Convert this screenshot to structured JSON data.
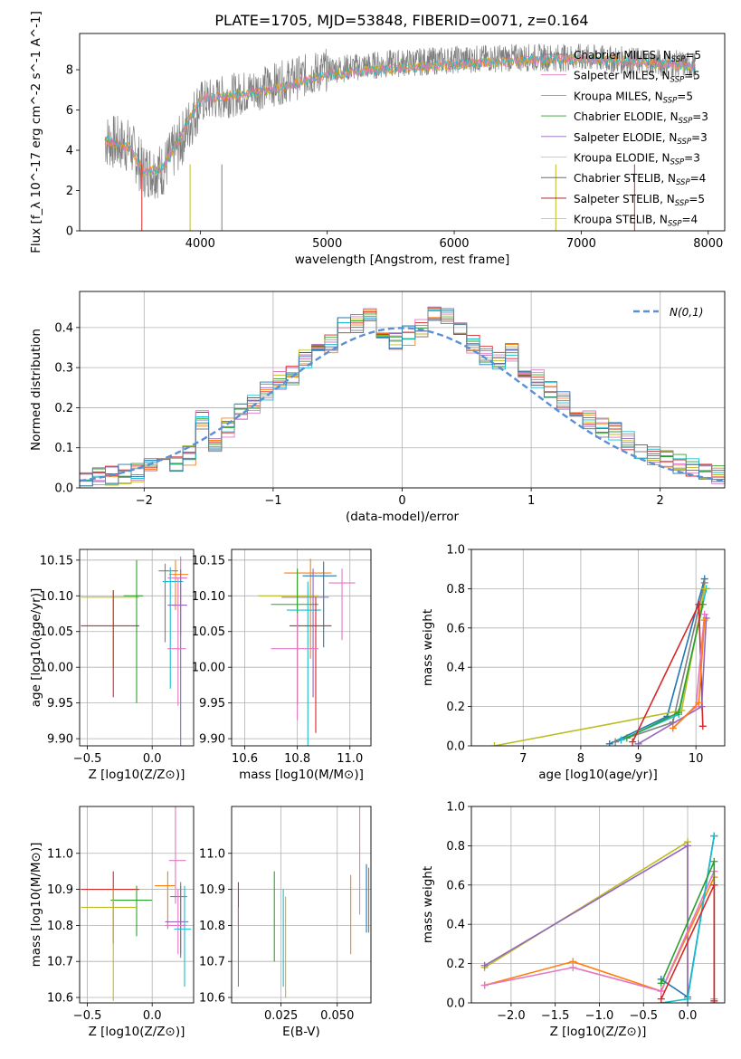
{
  "title": "PLATE=1705, MJD=53848, FIBERID=0071, z=0.164",
  "series_colors": [
    "#e377c2",
    "#7f7f7f",
    "#bcbd22",
    "#17becf",
    "#1f77b4",
    "#ff7f0e",
    "#2ca02c",
    "#d62728",
    "#9467bd"
  ],
  "chart_data": [
    {
      "id": "spectrum",
      "type": "line",
      "xlabel": "wavelength [Angstrom, rest frame]",
      "ylabel": "Flux [f_λ 10^-17 erg cm^-2 s^-1 A^-1]",
      "xlim": [
        3050,
        8130
      ],
      "ylim": [
        0,
        9.8
      ],
      "xticks": [
        4000,
        5000,
        6000,
        7000,
        8000
      ],
      "yticks": [
        0,
        2,
        4,
        6,
        8
      ],
      "legend_location": "upper right",
      "legend": [
        {
          "label": "Chabrier MILES, N",
          "sub": "SSP",
          "tail": "=5",
          "color": "#7f7f7f"
        },
        {
          "label": "Salpeter MILES, N",
          "sub": "SSP",
          "tail": "=5",
          "color": "#e377c2"
        },
        {
          "label": "Kroupa MILES, N",
          "sub": "SSP",
          "tail": "=5",
          "color": "#ff7f0e"
        },
        {
          "label": "Chabrier ELODIE, N",
          "sub": "SSP",
          "tail": "=3",
          "color": "#2ca02c"
        },
        {
          "label": "Salpeter ELODIE, N",
          "sub": "SSP",
          "tail": "=3",
          "color": "#9467bd"
        },
        {
          "label": "Kroupa ELODIE, N",
          "sub": "SSP",
          "tail": "=3",
          "color": "#dbdb4d"
        },
        {
          "label": "Chabrier STELIB, N",
          "sub": "SSP",
          "tail": "=4",
          "color": "#555555"
        },
        {
          "label": "Salpeter STELIB, N",
          "sub": "SSP",
          "tail": "=5",
          "color": "#8c1111"
        },
        {
          "label": "Kroupa STELIB, N",
          "sub": "SSP",
          "tail": "=4",
          "color": "#7fd6e6"
        }
      ],
      "model_trend": [
        [
          3250,
          4.6
        ],
        [
          3450,
          4.3
        ],
        [
          3550,
          3.1
        ],
        [
          3700,
          3.2
        ],
        [
          3850,
          4.9
        ],
        [
          4000,
          6.7
        ],
        [
          4300,
          6.9
        ],
        [
          4600,
          7.2
        ],
        [
          5000,
          7.9
        ],
        [
          5500,
          8.2
        ],
        [
          6000,
          8.4
        ],
        [
          6500,
          8.6
        ],
        [
          7000,
          8.7
        ],
        [
          7500,
          8.5
        ],
        [
          7900,
          8.3
        ]
      ],
      "data_trend": [
        [
          3250,
          4.5
        ],
        [
          3450,
          4.2
        ],
        [
          3550,
          3.0
        ],
        [
          3700,
          3.0
        ],
        [
          3850,
          4.5
        ],
        [
          4000,
          6.4
        ],
        [
          4300,
          6.8
        ],
        [
          4600,
          7.3
        ],
        [
          5000,
          8.0
        ],
        [
          5500,
          8.3
        ],
        [
          6000,
          8.5
        ],
        [
          6500,
          8.6
        ],
        [
          7000,
          8.6
        ],
        [
          7500,
          8.4
        ],
        [
          7900,
          8.2
        ]
      ],
      "spikes": [
        [
          3540,
          0
        ],
        [
          3920,
          0
        ],
        [
          4170,
          0
        ],
        [
          6800,
          0
        ],
        [
          7420,
          0
        ]
      ]
    },
    {
      "id": "residuals",
      "type": "step",
      "xlabel": "(data-model)/error",
      "ylabel": "Normed distribution",
      "xlim": [
        -2.5,
        2.5
      ],
      "ylim": [
        0,
        0.49
      ],
      "xticks": [
        -2,
        -1,
        0,
        1,
        2
      ],
      "yticks": [
        0.0,
        0.1,
        0.2,
        0.3,
        0.4
      ],
      "legend": "N(0,1)",
      "bin_centers": [
        -2.45,
        -2.35,
        -2.25,
        -2.15,
        -2.05,
        -1.95,
        -1.85,
        -1.75,
        -1.65,
        -1.55,
        -1.45,
        -1.35,
        -1.25,
        -1.15,
        -1.05,
        -0.95,
        -0.85,
        -0.75,
        -0.65,
        -0.55,
        -0.45,
        -0.35,
        -0.25,
        -0.15,
        -0.05,
        0.05,
        0.15,
        0.25,
        0.35,
        0.45,
        0.55,
        0.65,
        0.75,
        0.85,
        0.95,
        1.05,
        1.15,
        1.25,
        1.35,
        1.45,
        1.55,
        1.65,
        1.75,
        1.85,
        1.95,
        2.05,
        2.15,
        2.25,
        2.35,
        2.45
      ],
      "values": [
        0.025,
        0.03,
        0.03,
        0.035,
        0.04,
        0.055,
        0.05,
        0.065,
        0.08,
        0.17,
        0.1,
        0.15,
        0.19,
        0.21,
        0.24,
        0.27,
        0.28,
        0.32,
        0.34,
        0.36,
        0.4,
        0.41,
        0.43,
        0.38,
        0.37,
        0.38,
        0.4,
        0.44,
        0.43,
        0.4,
        0.36,
        0.33,
        0.32,
        0.34,
        0.3,
        0.27,
        0.25,
        0.22,
        0.19,
        0.17,
        0.15,
        0.14,
        0.12,
        0.09,
        0.08,
        0.07,
        0.06,
        0.05,
        0.04,
        0.03
      ]
    },
    {
      "id": "age-vs-Z",
      "type": "errorbar",
      "xlabel": "Z [log10(Z/Z⊙)]",
      "ylabel": "age [log10(age/yr)]",
      "xlim": [
        -0.56,
        0.32
      ],
      "ylim": [
        9.89,
        10.165
      ],
      "xticks": [
        -0.5,
        0.0
      ],
      "yticks": [
        9.9,
        9.95,
        10.0,
        10.05,
        10.1,
        10.15
      ],
      "points": [
        {
          "x": 0.18,
          "y": 10.13,
          "xerr": [
            0.05,
            0.1
          ],
          "yerr": [
            0.05,
            0.02
          ],
          "c": 5
        },
        {
          "x": 0.22,
          "y": 10.125,
          "xerr": [
            0.1,
            0.05
          ],
          "yerr": [
            0.08,
            0.03
          ],
          "c": 0
        },
        {
          "x": 0.1,
          "y": 10.135,
          "xerr": [
            0.05,
            0.1
          ],
          "yerr": [
            0.1,
            0.01
          ],
          "c": 1
        },
        {
          "x": 0.14,
          "y": 10.12,
          "xerr": [
            0.06,
            0.1
          ],
          "yerr": [
            0.15,
            0.02
          ],
          "c": 3
        },
        {
          "x": -0.3,
          "y": 10.098,
          "xerr": [
            0.25,
            0.2
          ],
          "yerr": [
            0.1,
            0.01
          ],
          "c": 2
        },
        {
          "x": -0.12,
          "y": 10.1,
          "xerr": [
            0.1,
            0.05
          ],
          "yerr": [
            0.15,
            0.05
          ],
          "c": 6
        },
        {
          "x": 0.22,
          "y": 10.087,
          "xerr": [
            0.1,
            0.05
          ],
          "yerr": [
            0.2,
            0.05
          ],
          "c": 8
        },
        {
          "x": -0.3,
          "y": 10.058,
          "xerr": [
            0.25,
            0.2
          ],
          "yerr": [
            0.1,
            0.05
          ],
          "c": 7
        },
        {
          "x": 0.2,
          "y": 10.026,
          "xerr": [
            0.08,
            0.06
          ],
          "yerr": [
            0.08,
            0.1
          ],
          "c": 9
        }
      ]
    },
    {
      "id": "age-vs-mass",
      "type": "errorbar",
      "xlabel": "mass [log10(M/M⊙)]",
      "ylabel": "",
      "xlim": [
        10.55,
        11.08
      ],
      "ylim": [
        9.89,
        10.165
      ],
      "xticks": [
        10.6,
        10.8,
        11.0
      ],
      "yticks": [
        9.9,
        9.95,
        10.0,
        10.05,
        10.1,
        10.15
      ],
      "points": [
        {
          "x": 10.85,
          "y": 10.132,
          "xerr": [
            0.1,
            0.08
          ],
          "yerr": [
            0.12,
            0.02
          ],
          "c": 5
        },
        {
          "x": 10.9,
          "y": 10.128,
          "xerr": [
            0.08,
            0.05
          ],
          "yerr": [
            0.1,
            0.02
          ],
          "c": 4
        },
        {
          "x": 10.97,
          "y": 10.118,
          "xerr": [
            0.05,
            0.05
          ],
          "yerr": [
            0.08,
            0.02
          ],
          "c": 0
        },
        {
          "x": 10.8,
          "y": 10.1,
          "xerr": [
            0.15,
            0.08
          ],
          "yerr": [
            0.15,
            0.03
          ],
          "c": 2
        },
        {
          "x": 10.86,
          "y": 10.098,
          "xerr": [
            0.12,
            0.06
          ],
          "yerr": [
            0.14,
            0.04
          ],
          "c": 8
        },
        {
          "x": 10.8,
          "y": 10.088,
          "xerr": [
            0.1,
            0.08
          ],
          "yerr": [
            0.14,
            0.05
          ],
          "c": 6
        },
        {
          "x": 10.84,
          "y": 10.08,
          "xerr": [
            0.08,
            0.05
          ],
          "yerr": [
            0.2,
            0.04
          ],
          "c": 3
        },
        {
          "x": 10.87,
          "y": 10.058,
          "xerr": [
            0.1,
            0.06
          ],
          "yerr": [
            0.15,
            0.04
          ],
          "c": 7
        },
        {
          "x": 10.8,
          "y": 10.026,
          "xerr": [
            0.1,
            0.08
          ],
          "yerr": [
            0.1,
            0.05
          ],
          "c": 9
        }
      ]
    },
    {
      "id": "massweight-vs-age",
      "type": "line",
      "xlabel": "age [log10(age/yr)]",
      "ylabel": "mass weight",
      "xlim": [
        6.1,
        10.5
      ],
      "ylim": [
        0,
        1.0
      ],
      "xticks": [
        7,
        8,
        9,
        10
      ],
      "yticks": [
        0.0,
        0.2,
        0.4,
        0.6,
        0.8,
        1.0
      ],
      "series": [
        {
          "c": 4,
          "x": [
            8.5,
            9.5,
            10.15
          ],
          "y": [
            0.01,
            0.15,
            0.85
          ]
        },
        {
          "c": 1,
          "x": [
            8.6,
            9.6,
            10.15
          ],
          "y": [
            0.02,
            0.12,
            0.83
          ]
        },
        {
          "c": 3,
          "x": [
            8.7,
            9.7,
            10.18
          ],
          "y": [
            0.03,
            0.16,
            0.8
          ]
        },
        {
          "c": 2,
          "x": [
            6.5,
            9.75,
            10.15
          ],
          "y": [
            0.0,
            0.18,
            0.8
          ]
        },
        {
          "c": 6,
          "x": [
            8.8,
            9.7,
            10.12
          ],
          "y": [
            0.04,
            0.17,
            0.72
          ]
        },
        {
          "c": 7,
          "x": [
            8.9,
            10.05,
            10.12
          ],
          "y": [
            0.02,
            0.72,
            0.1
          ]
        },
        {
          "c": 8,
          "x": [
            9.0,
            10.1,
            10.18
          ],
          "y": [
            0.01,
            0.2,
            0.65
          ]
        },
        {
          "c": 0,
          "x": [
            9.6,
            10.0,
            10.15
          ],
          "y": [
            0.09,
            0.2,
            0.67
          ]
        },
        {
          "c": 5,
          "x": [
            9.6,
            10.05,
            10.15
          ],
          "y": [
            0.09,
            0.22,
            0.64
          ]
        }
      ]
    },
    {
      "id": "mass-vs-Z",
      "type": "errorbar",
      "xlabel": "Z [log10(Z/Z⊙)]",
      "ylabel": "mass [log10(M/M⊙)]",
      "xlim": [
        -0.56,
        0.32
      ],
      "ylim": [
        10.585,
        11.13
      ],
      "xticks": [
        -0.5,
        0.0
      ],
      "yticks": [
        10.6,
        10.7,
        10.8,
        10.9,
        11.0
      ],
      "points": [
        {
          "x": 0.18,
          "y": 10.98,
          "xerr": [
            0.05,
            0.08
          ],
          "yerr": [
            0.12,
            0.16
          ],
          "c": 0
        },
        {
          "x": 0.12,
          "y": 10.91,
          "xerr": [
            0.1,
            0.06
          ],
          "yerr": [
            0.12,
            0.04
          ],
          "c": 5
        },
        {
          "x": -0.3,
          "y": 10.9,
          "xerr": [
            0.25,
            0.2
          ],
          "yerr": [
            0.15,
            0.05
          ],
          "c": 7
        },
        {
          "x": 0.22,
          "y": 10.88,
          "xerr": [
            0.08,
            0.05
          ],
          "yerr": [
            0.16,
            0.04
          ],
          "c": 1
        },
        {
          "x": -0.12,
          "y": 10.87,
          "xerr": [
            0.2,
            0.12
          ],
          "yerr": [
            0.1,
            0.04
          ],
          "c": 6
        },
        {
          "x": -0.3,
          "y": 10.85,
          "xerr": [
            0.25,
            0.18
          ],
          "yerr": [
            0.26,
            0.05
          ],
          "c": 2
        },
        {
          "x": 0.22,
          "y": 10.81,
          "xerr": [
            0.12,
            0.06
          ],
          "yerr": [
            0.1,
            0.1
          ],
          "c": 8
        },
        {
          "x": 0.2,
          "y": 10.8,
          "xerr": [
            0.1,
            0.06
          ],
          "yerr": [
            0.08,
            0.1
          ],
          "c": 9
        },
        {
          "x": 0.25,
          "y": 10.79,
          "xerr": [
            0.08,
            0.05
          ],
          "yerr": [
            0.16,
            0.12
          ],
          "c": 3
        }
      ]
    },
    {
      "id": "mass-vs-EBV",
      "type": "errorbar",
      "xlabel": "E(B-V)",
      "ylabel": "",
      "xlim": [
        0.003,
        0.065
      ],
      "ylim": [
        10.585,
        11.13
      ],
      "xticks": [
        0.025,
        0.05
      ],
      "yticks": [
        10.6,
        10.7,
        10.8,
        10.9,
        11.0
      ],
      "points": [
        {
          "x": 0.006,
          "y": 10.85,
          "xerr": [
            0,
            0
          ],
          "yerr": [
            0.05,
            0.07
          ],
          "c": 7
        },
        {
          "x": 0.006,
          "y": 10.78,
          "xerr": [
            0,
            0
          ],
          "yerr": [
            0.15,
            0.07
          ],
          "c": 8
        },
        {
          "x": 0.022,
          "y": 10.82,
          "xerr": [
            0,
            0
          ],
          "yerr": [
            0.12,
            0.13
          ],
          "c": 6
        },
        {
          "x": 0.026,
          "y": 10.8,
          "xerr": [
            0,
            0
          ],
          "yerr": [
            0.17,
            0.1
          ],
          "c": 3
        },
        {
          "x": 0.027,
          "y": 10.8,
          "xerr": [
            0,
            0
          ],
          "yerr": [
            0.2,
            0.08
          ],
          "c": 2
        },
        {
          "x": 0.056,
          "y": 10.86,
          "xerr": [
            0,
            0
          ],
          "yerr": [
            0.14,
            0.08
          ],
          "c": 5
        },
        {
          "x": 0.06,
          "y": 10.95,
          "xerr": [
            0,
            0
          ],
          "yerr": [
            0.12,
            0.19
          ],
          "c": 0
        },
        {
          "x": 0.063,
          "y": 10.88,
          "xerr": [
            0,
            0
          ],
          "yerr": [
            0.1,
            0.09
          ],
          "c": 4
        },
        {
          "x": 0.064,
          "y": 10.86,
          "xerr": [
            0,
            0
          ],
          "yerr": [
            0.08,
            0.1
          ],
          "c": 1
        }
      ]
    },
    {
      "id": "massweight-vs-Z",
      "type": "line",
      "xlabel": "Z [log10(Z/Z⊙)]",
      "ylabel": "mass weight",
      "xlim": [
        -2.45,
        0.42
      ],
      "ylim": [
        0,
        1.0
      ],
      "xticks": [
        -2.0,
        -1.5,
        -1.0,
        -0.5,
        0.0
      ],
      "yticks": [
        0.0,
        0.2,
        0.4,
        0.6,
        0.8,
        1.0
      ],
      "series": [
        {
          "c": 2,
          "x": [
            -2.3,
            0.0,
            0.0
          ],
          "y": [
            0.18,
            0.82,
            0.0
          ]
        },
        {
          "c": 8,
          "x": [
            -2.3,
            0.0,
            0.0
          ],
          "y": [
            0.19,
            0.8,
            0.02
          ]
        },
        {
          "c": 5,
          "x": [
            -2.3,
            -1.3,
            -0.3,
            0.3,
            0.3
          ],
          "y": [
            0.09,
            0.21,
            0.06,
            0.64,
            0.0
          ]
        },
        {
          "c": 0,
          "x": [
            -2.3,
            -1.3,
            -0.3,
            0.3,
            0.3
          ],
          "y": [
            0.09,
            0.18,
            0.06,
            0.67,
            0.02
          ]
        },
        {
          "c": 4,
          "x": [
            -0.3,
            0.0,
            0.3
          ],
          "y": [
            0.12,
            0.03,
            0.85
          ]
        },
        {
          "c": 3,
          "x": [
            -0.3,
            0.0,
            0.3
          ],
          "y": [
            0.0,
            0.02,
            0.85
          ]
        },
        {
          "c": 6,
          "x": [
            -0.3,
            0.3,
            0.3
          ],
          "y": [
            0.1,
            0.72,
            0.0
          ]
        },
        {
          "c": 7,
          "x": [
            -0.3,
            0.3,
            0.3
          ],
          "y": [
            0.02,
            0.6,
            0.01
          ]
        }
      ]
    }
  ]
}
